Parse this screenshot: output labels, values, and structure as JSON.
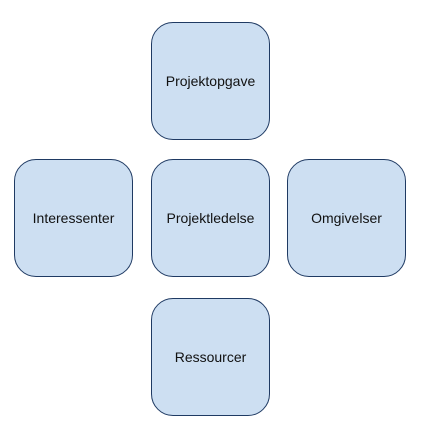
{
  "diagram": {
    "nodes": {
      "top": {
        "label": "Projektopgave"
      },
      "left": {
        "label": "Interessenter"
      },
      "center": {
        "label": "Projektledelse"
      },
      "right": {
        "label": "Omgivelser"
      },
      "bottom": {
        "label": "Ressourcer"
      }
    },
    "colors": {
      "fill": "#cddff2",
      "border": "#1f3a63",
      "text": "#111111",
      "background": "#ffffff"
    }
  }
}
